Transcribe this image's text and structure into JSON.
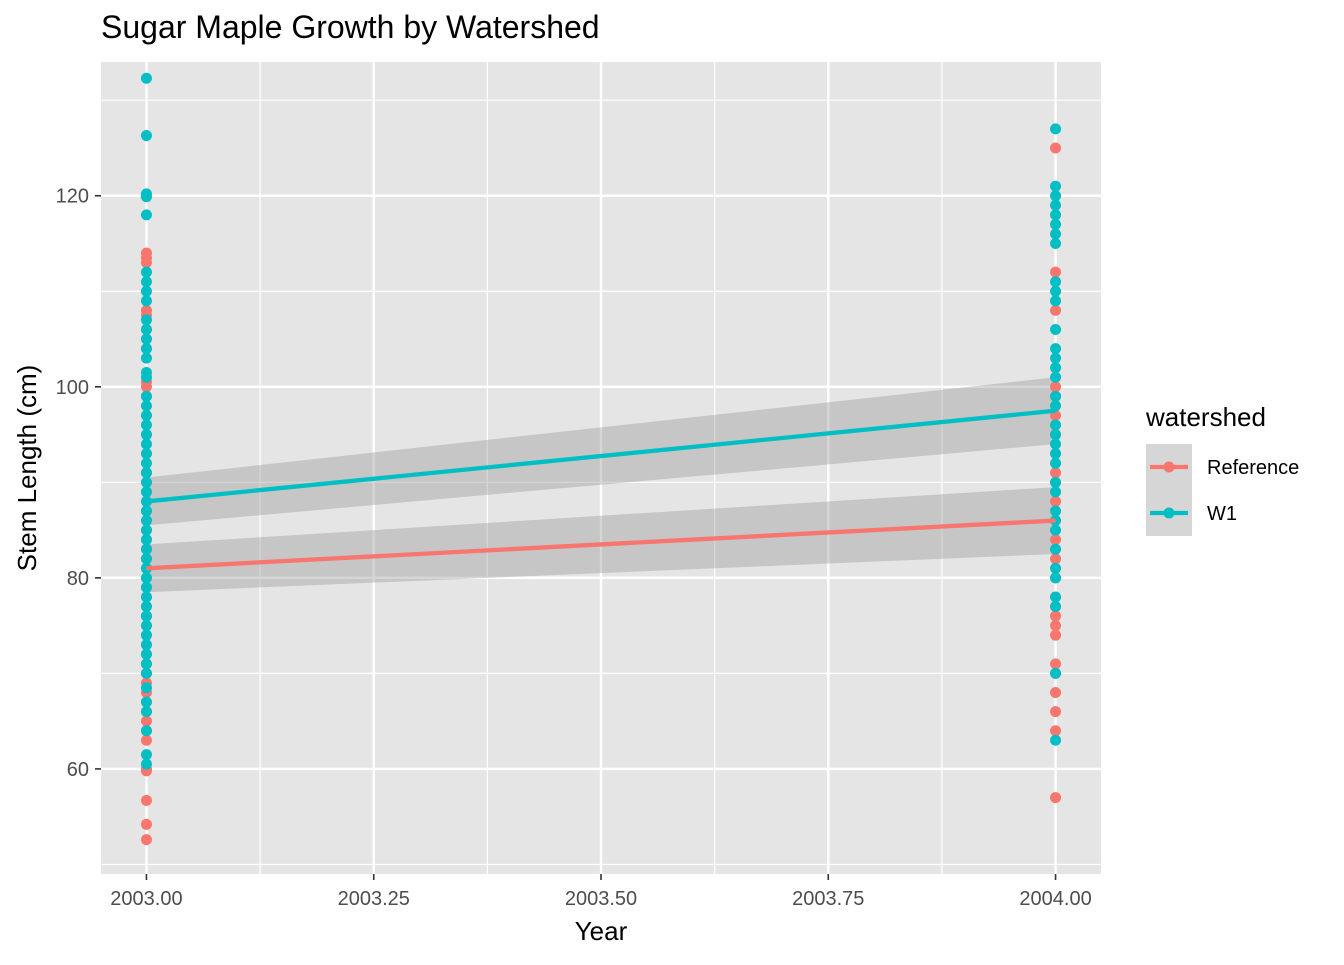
{
  "chart_data": {
    "type": "scatter",
    "title": "Sugar Maple Growth by Watershed",
    "xlabel": "Year",
    "ylabel": "Stem Length (cm)",
    "xlim": [
      2002.95,
      2004.05
    ],
    "ylim": [
      49,
      134
    ],
    "x_ticks": [
      2003.0,
      2003.25,
      2003.5,
      2003.75,
      2004.0
    ],
    "x_tick_labels": [
      "2003.00",
      "2003.25",
      "2003.50",
      "2003.75",
      "2004.00"
    ],
    "y_ticks": [
      60,
      80,
      100,
      120
    ],
    "y_tick_labels": [
      "60",
      "80",
      "100",
      "120"
    ],
    "grid": true,
    "legend": {
      "title": "watershed",
      "placement": "right"
    },
    "colors": {
      "panel_background": "#e5e5e5",
      "grid": "#ffffff",
      "ribbon": "#999999",
      "Reference": "#f8766d",
      "W1": "#00bfc4"
    },
    "series": [
      {
        "name": "Reference",
        "color": "#f8766d",
        "points": [
          {
            "x": 2003,
            "values": [
              114,
              113.5,
              113,
              108,
              107.5,
              106,
              105,
              104,
              100.5,
              100,
              99,
              97,
              95,
              93,
              91,
              90,
              89,
              88,
              87,
              86,
              85,
              84,
              83,
              82,
              81,
              80,
              79,
              78,
              77,
              76,
              75,
              74,
              73,
              72,
              71,
              70,
              69,
              68,
              67,
              66,
              65,
              64,
              63,
              60,
              59.8,
              56.7,
              54.2,
              52.6
            ]
          },
          {
            "x": 2004,
            "values": [
              125,
              112,
              108,
              100,
              99,
              97,
              95,
              93,
              91,
              90,
              88,
              86,
              84,
              82,
              80,
              78,
              77,
              76,
              75,
              74,
              71,
              70,
              68,
              66,
              64,
              57
            ]
          }
        ],
        "fit": {
          "x": [
            2003,
            2004
          ],
          "y": [
            81.0,
            86.0
          ]
        },
        "ribbon": {
          "x": [
            2003,
            2004
          ],
          "upper": [
            83.5,
            89.5
          ],
          "lower": [
            78.5,
            82.5
          ]
        }
      },
      {
        "name": "W1",
        "color": "#00bfc4",
        "points": [
          {
            "x": 2003,
            "values": [
              132.3,
              126.3,
              120.2,
              119.9,
              118,
              112,
              111,
              110,
              109,
              107,
              106,
              105,
              104,
              103,
              101.5,
              101,
              99,
              98,
              97,
              96,
              95,
              94,
              93,
              92,
              91,
              90,
              89,
              88,
              87,
              86,
              85,
              84,
              83,
              82,
              81,
              80,
              79,
              78,
              77,
              76,
              75,
              74,
              73,
              72,
              71,
              70,
              68.5,
              67,
              66,
              64,
              61.5,
              60.5
            ]
          },
          {
            "x": 2004,
            "values": [
              127,
              121,
              120,
              119,
              118,
              117,
              116,
              115,
              111,
              110,
              109,
              106,
              104,
              103,
              102,
              101,
              99,
              98,
              96,
              95,
              94,
              93,
              92,
              90,
              89,
              87,
              86,
              85,
              83,
              81,
              80,
              78,
              77,
              70,
              63
            ]
          }
        ],
        "fit": {
          "x": [
            2003,
            2004
          ],
          "y": [
            88.0,
            97.5
          ]
        },
        "ribbon": {
          "x": [
            2003,
            2004
          ],
          "upper": [
            90.5,
            101.0
          ],
          "lower": [
            85.5,
            94.0
          ]
        }
      }
    ]
  }
}
